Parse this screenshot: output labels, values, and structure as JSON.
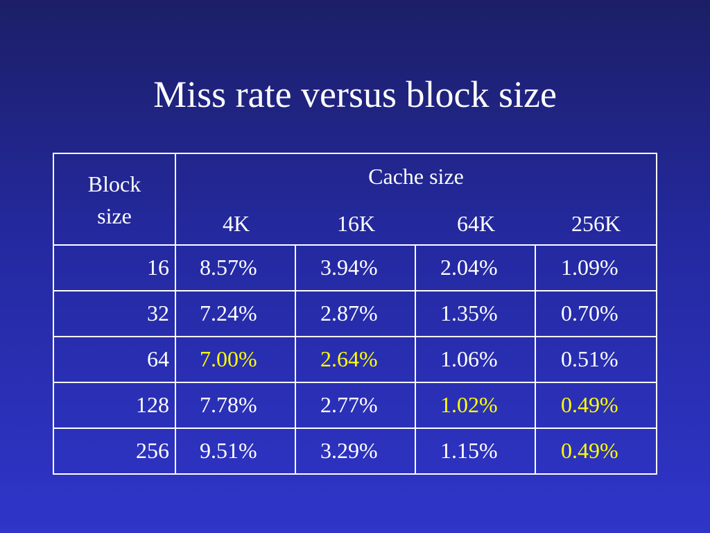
{
  "title": "Miss rate versus block size",
  "table": {
    "corner_header_line1": "Block",
    "corner_header_line2": "size",
    "group_header": "Cache size",
    "columns": [
      "4K",
      "16K",
      "64K",
      "256K"
    ],
    "rows": [
      {
        "block_size": "16",
        "values": [
          "8.57%",
          "3.94%",
          "2.04%",
          "1.09%"
        ],
        "highlight": [
          false,
          false,
          false,
          false
        ]
      },
      {
        "block_size": "32",
        "values": [
          "7.24%",
          "2.87%",
          "1.35%",
          "0.70%"
        ],
        "highlight": [
          false,
          false,
          false,
          false
        ]
      },
      {
        "block_size": "64",
        "values": [
          "7.00%",
          "2.64%",
          "1.06%",
          "0.51%"
        ],
        "highlight": [
          true,
          true,
          false,
          false
        ]
      },
      {
        "block_size": "128",
        "values": [
          "7.78%",
          "2.77%",
          "1.02%",
          "0.49%"
        ],
        "highlight": [
          false,
          false,
          true,
          true
        ]
      },
      {
        "block_size": "256",
        "values": [
          "9.51%",
          "3.29%",
          "1.15%",
          "0.49%"
        ],
        "highlight": [
          false,
          false,
          false,
          true
        ]
      }
    ]
  },
  "colors": {
    "text": "#ffffff",
    "highlight": "#ffff00",
    "background_top": "#1c1f66",
    "background_bottom": "#2f35c8"
  }
}
